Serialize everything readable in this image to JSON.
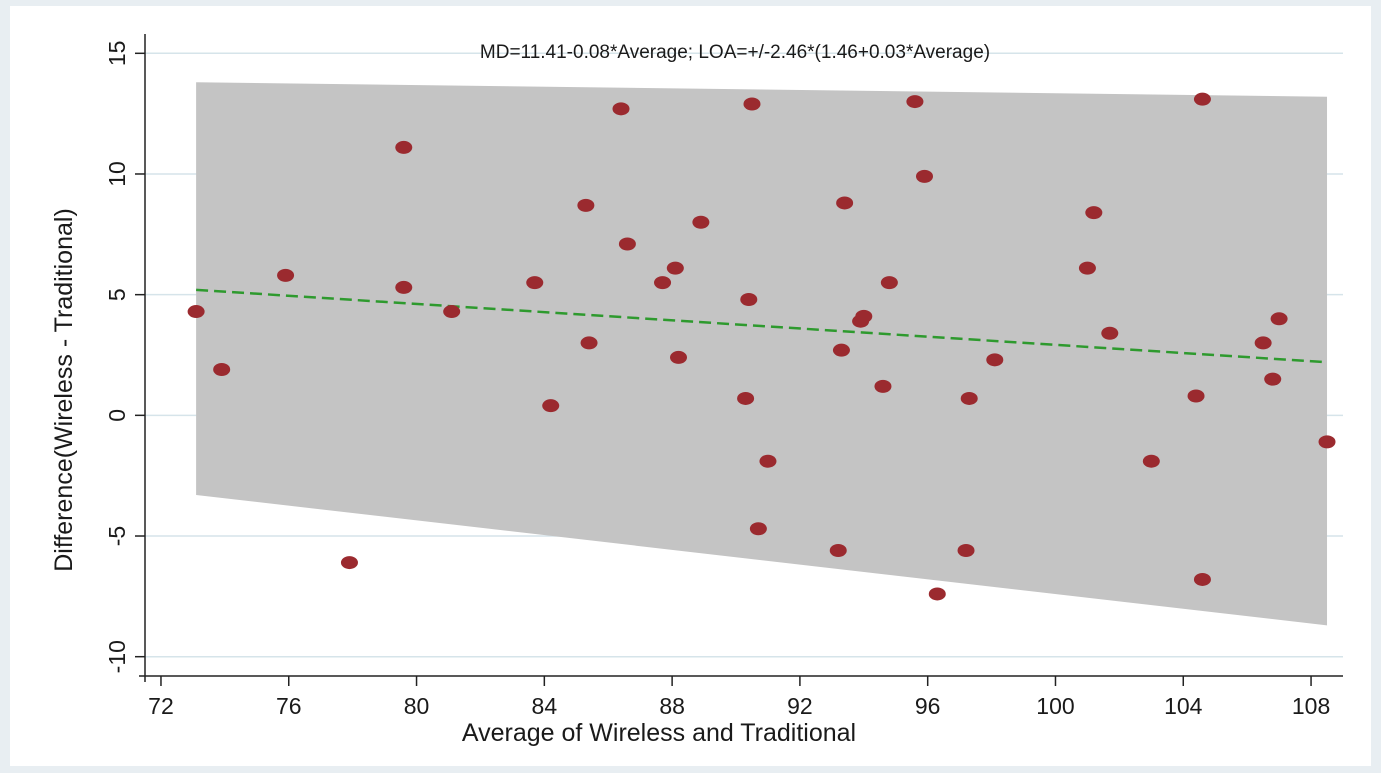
{
  "chart_data": {
    "type": "scatter",
    "title": "",
    "annotation": "MD=11.41-0.08*Average; LOA=+/-2.46*(1.46+0.03*Average)",
    "xlabel": "Average of Wireless and Traditional",
    "ylabel": "Difference(Wireless - Traditional)",
    "xlim": [
      71.5,
      109
    ],
    "ylim": [
      -10.8,
      15.8
    ],
    "x_ticks": [
      72,
      76,
      80,
      84,
      88,
      92,
      96,
      100,
      104,
      108
    ],
    "y_ticks": [
      -10,
      -5,
      0,
      5,
      10,
      15
    ],
    "grid": true,
    "legend": "none",
    "colors": {
      "points": "#9b2a2f",
      "band": "#c4c4c4",
      "regression_line": "#2e9a2e",
      "grid": "#d6e4ea"
    },
    "regression_line": {
      "x": [
        73.1,
        108.5
      ],
      "y": [
        5.2,
        2.2
      ]
    },
    "limits_of_agreement_band": {
      "x": [
        73.1,
        108.5
      ],
      "upper": [
        13.8,
        13.2
      ],
      "lower": [
        -3.3,
        -8.7
      ]
    },
    "points": [
      {
        "x": 73.1,
        "y": 4.3
      },
      {
        "x": 73.9,
        "y": 1.9
      },
      {
        "x": 75.9,
        "y": 5.8
      },
      {
        "x": 77.9,
        "y": -6.1
      },
      {
        "x": 79.6,
        "y": 11.1
      },
      {
        "x": 79.6,
        "y": 5.3
      },
      {
        "x": 81.1,
        "y": 4.3
      },
      {
        "x": 83.7,
        "y": 5.5
      },
      {
        "x": 84.2,
        "y": 0.4
      },
      {
        "x": 85.3,
        "y": 8.7
      },
      {
        "x": 85.4,
        "y": 3.0
      },
      {
        "x": 86.4,
        "y": 12.7
      },
      {
        "x": 86.6,
        "y": 7.1
      },
      {
        "x": 87.7,
        "y": 5.5
      },
      {
        "x": 88.1,
        "y": 6.1
      },
      {
        "x": 88.2,
        "y": 2.4
      },
      {
        "x": 88.9,
        "y": 8.0
      },
      {
        "x": 90.3,
        "y": 0.7
      },
      {
        "x": 90.4,
        "y": 4.8
      },
      {
        "x": 90.5,
        "y": 12.9
      },
      {
        "x": 90.7,
        "y": -4.7
      },
      {
        "x": 91.0,
        "y": -1.9
      },
      {
        "x": 93.2,
        "y": -5.6
      },
      {
        "x": 93.3,
        "y": 2.7
      },
      {
        "x": 93.4,
        "y": 8.8
      },
      {
        "x": 93.9,
        "y": 3.9
      },
      {
        "x": 94.0,
        "y": 4.1
      },
      {
        "x": 94.6,
        "y": 1.2
      },
      {
        "x": 94.8,
        "y": 5.5
      },
      {
        "x": 95.6,
        "y": 13.0
      },
      {
        "x": 95.9,
        "y": 9.9
      },
      {
        "x": 96.3,
        "y": -7.4
      },
      {
        "x": 97.2,
        "y": -5.6
      },
      {
        "x": 97.3,
        "y": 0.7
      },
      {
        "x": 98.1,
        "y": 2.3
      },
      {
        "x": 101.0,
        "y": 6.1
      },
      {
        "x": 101.2,
        "y": 8.4
      },
      {
        "x": 101.7,
        "y": 3.4
      },
      {
        "x": 103.0,
        "y": -1.9
      },
      {
        "x": 104.4,
        "y": 0.8
      },
      {
        "x": 104.6,
        "y": 13.1
      },
      {
        "x": 104.6,
        "y": -6.8
      },
      {
        "x": 106.5,
        "y": 3.0
      },
      {
        "x": 106.8,
        "y": 1.5
      },
      {
        "x": 107.0,
        "y": 4.0
      },
      {
        "x": 108.5,
        "y": -1.1
      }
    ]
  }
}
